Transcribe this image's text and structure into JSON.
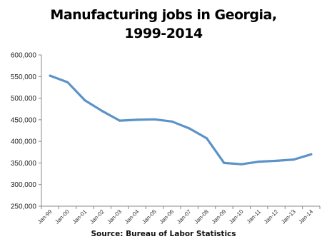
{
  "title": {
    "line1": "Manufacturing jobs in Georgia,",
    "line2": "1999-2014"
  },
  "source": "Source: Bureau of Labor Statistics",
  "colors": {
    "line": "#5b93c7",
    "axis": "#888888"
  },
  "chart_data": {
    "type": "line",
    "title": "Manufacturing jobs in Georgia, 1999-2014",
    "xlabel": "",
    "ylabel": "",
    "categories": [
      "Jan-99",
      "Jan-00",
      "Jan-01",
      "Jan-02",
      "Jan-03",
      "Jan-04",
      "Jan-05",
      "Jan-06",
      "Jan-07",
      "Jan-08",
      "Jan-09",
      "Jan-10",
      "Jan-11",
      "Jan-12",
      "Jan-13",
      "Jan-14"
    ],
    "series": [
      {
        "values": [
          552000,
          537000,
          495000,
          470000,
          448000,
          450000,
          451000,
          446000,
          430000,
          407000,
          350000,
          347000,
          353000,
          355000,
          358000,
          370000
        ]
      }
    ],
    "ylim": [
      250000,
      600000
    ],
    "yticks": [
      250000,
      300000,
      350000,
      400000,
      450000,
      500000,
      550000,
      600000
    ],
    "ytick_labels": [
      "250,000",
      "300,000",
      "350,000",
      "400,000",
      "450,000",
      "500,000",
      "550,000",
      "600,000"
    ],
    "grid": false,
    "legend": "none"
  }
}
